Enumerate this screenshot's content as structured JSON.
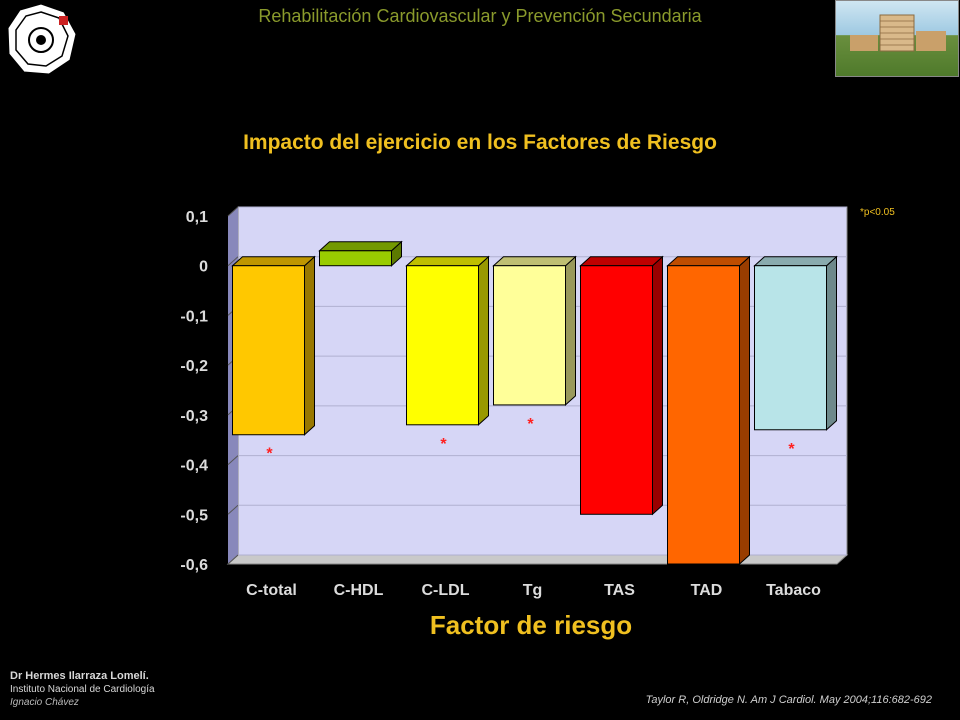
{
  "header": {
    "title": "Rehabilitación Cardiovascular y  Prevención Secundaria"
  },
  "colors": {
    "title": "#f0c020",
    "header": "#8a9a2c",
    "plot_background": "#d6d6f6",
    "plot_wall": "#8888bb",
    "plot_floor": "#c9c9c9",
    "significance": "#ff2020"
  },
  "logo": {
    "icon": "institution-seal-icon"
  },
  "photo": {
    "icon": "hospital-building-photo"
  },
  "note": "*p<0.05",
  "chart_data": {
    "type": "bar",
    "title": "Impacto del ejercicio en los Factores de Riesgo",
    "xlabel": "Factor de riesgo",
    "ylabel": "",
    "ylim": [
      -0.6,
      0.1
    ],
    "yticks": [
      "0,1",
      "0",
      "-0,1",
      "-0,2",
      "-0,3",
      "-0,4",
      "-0,5",
      "-0,6"
    ],
    "ytick_values": [
      0.1,
      0,
      -0.1,
      -0.2,
      -0.3,
      -0.4,
      -0.5,
      -0.6
    ],
    "categories": [
      "C-total",
      "C-HDL",
      "C-LDL",
      "Tg",
      "TAS",
      "TAD",
      "Tabaco"
    ],
    "values": [
      -0.34,
      0.03,
      -0.32,
      -0.28,
      -0.5,
      -0.6,
      -0.33
    ],
    "significant": [
      true,
      false,
      true,
      true,
      false,
      false,
      true
    ],
    "significance_marker": "*",
    "bar_colors": [
      "#ffc800",
      "#99cc00",
      "#ffff00",
      "#ffff99",
      "#ff0000",
      "#ff6600",
      "#b8e4e8"
    ],
    "grid": true,
    "three_d": true
  },
  "footer": {
    "author": "Dr Hermes  Ilarraza Lomelí.",
    "institution_1": "Instituto Nacional de Cardiología",
    "institution_2": "Ignacio Chávez",
    "citation": "Taylor R, Oldridge N.  Am J Cardiol.  May 2004;116:682-692"
  }
}
